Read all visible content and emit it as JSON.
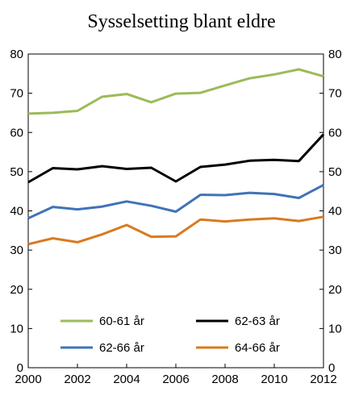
{
  "chart_data": {
    "type": "line",
    "title": "Sysselsetting blant eldre",
    "xlabel": "",
    "ylabel": "",
    "x": [
      2000,
      2001,
      2002,
      2003,
      2004,
      2005,
      2006,
      2007,
      2008,
      2009,
      2010,
      2011,
      2012
    ],
    "xlim": [
      2000,
      2012
    ],
    "xticks": [
      "2000",
      "2002",
      "2004",
      "2006",
      "2008",
      "2010",
      "2012"
    ],
    "ylim": [
      0,
      80
    ],
    "yticks": [
      "0",
      "10",
      "20",
      "30",
      "40",
      "50",
      "60",
      "70",
      "80"
    ],
    "grid": false,
    "legend_position": "bottom",
    "series": [
      {
        "name": "60-61 år",
        "color": "#9bbb59",
        "values": [
          64.8,
          65.0,
          65.5,
          69.1,
          69.8,
          67.7,
          69.9,
          70.1,
          72.0,
          73.8,
          74.8,
          76.1,
          74.3
        ]
      },
      {
        "name": "62-63 år",
        "color": "#000000",
        "values": [
          47.3,
          50.9,
          50.6,
          51.4,
          50.7,
          51.0,
          47.5,
          51.2,
          51.8,
          52.8,
          53.0,
          52.7,
          59.5
        ]
      },
      {
        "name": "62-66 år",
        "color": "#3f73b8",
        "values": [
          38.1,
          41.0,
          40.4,
          41.1,
          42.4,
          41.3,
          39.8,
          44.1,
          44.0,
          44.6,
          44.3,
          43.3,
          46.6
        ]
      },
      {
        "name": "64-66 år",
        "color": "#d97a1f",
        "values": [
          31.5,
          33.0,
          32.0,
          34.0,
          36.4,
          33.4,
          33.5,
          37.8,
          37.3,
          37.8,
          38.1,
          37.4,
          38.5
        ]
      }
    ]
  }
}
